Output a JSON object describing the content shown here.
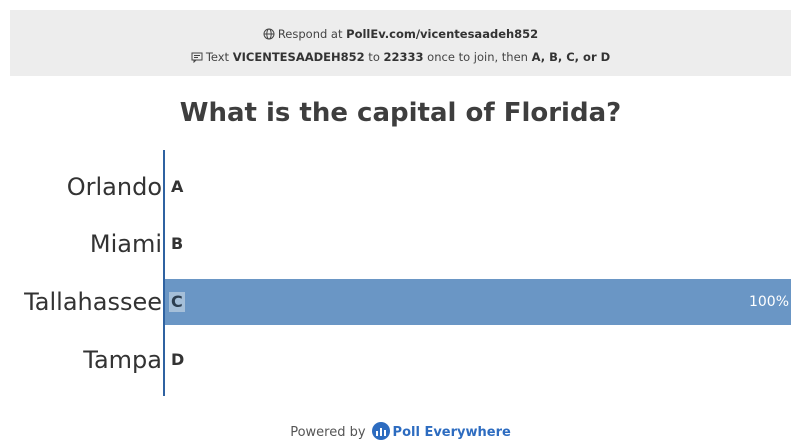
{
  "header": {
    "respond_prefix": "Respond at ",
    "respond_url": "PollEv.com/vicentesaadeh852",
    "text_prefix": "Text ",
    "text_code": "VICENTESAADEH852",
    "text_to": " to ",
    "text_number": "22333",
    "text_mid": " once to join, then ",
    "text_options": "A, B, C, or D",
    "globe_icon": "globe-icon",
    "sms_icon": "sms-icon"
  },
  "question": "What is the capital of Florida?",
  "chart_data": {
    "type": "bar",
    "orientation": "horizontal",
    "categories": [
      "Orlando",
      "Miami",
      "Tallahassee",
      "Tampa"
    ],
    "letters": [
      "A",
      "B",
      "C",
      "D"
    ],
    "values": [
      0,
      0,
      100,
      0
    ],
    "value_labels": [
      "",
      "",
      "100%",
      ""
    ],
    "xlim": [
      0,
      100
    ],
    "bar_color": "#6a96c5",
    "axis_color": "#2f62a1"
  },
  "footer": {
    "powered_by": "Powered by",
    "brand": "Poll Everywhere"
  }
}
